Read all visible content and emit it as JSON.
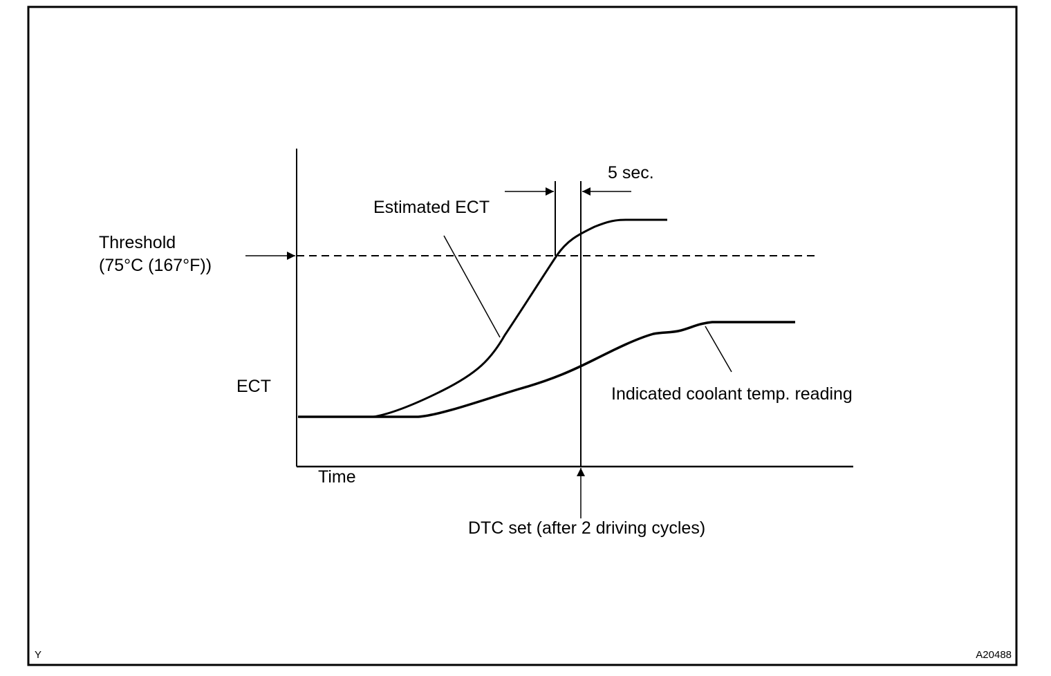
{
  "figure": {
    "corner_left": "Y",
    "figure_id": "A20488"
  },
  "axes": {
    "y_label": "ECT",
    "x_label": "Time"
  },
  "labels": {
    "threshold_line1": "Threshold",
    "threshold_line2": "(75°C (167°F))",
    "estimated_ect": "Estimated ECT",
    "delay": "5 sec.",
    "indicated": "Indicated coolant temp. reading",
    "dtc_set": "DTC set (after 2 driving cycles)"
  }
}
